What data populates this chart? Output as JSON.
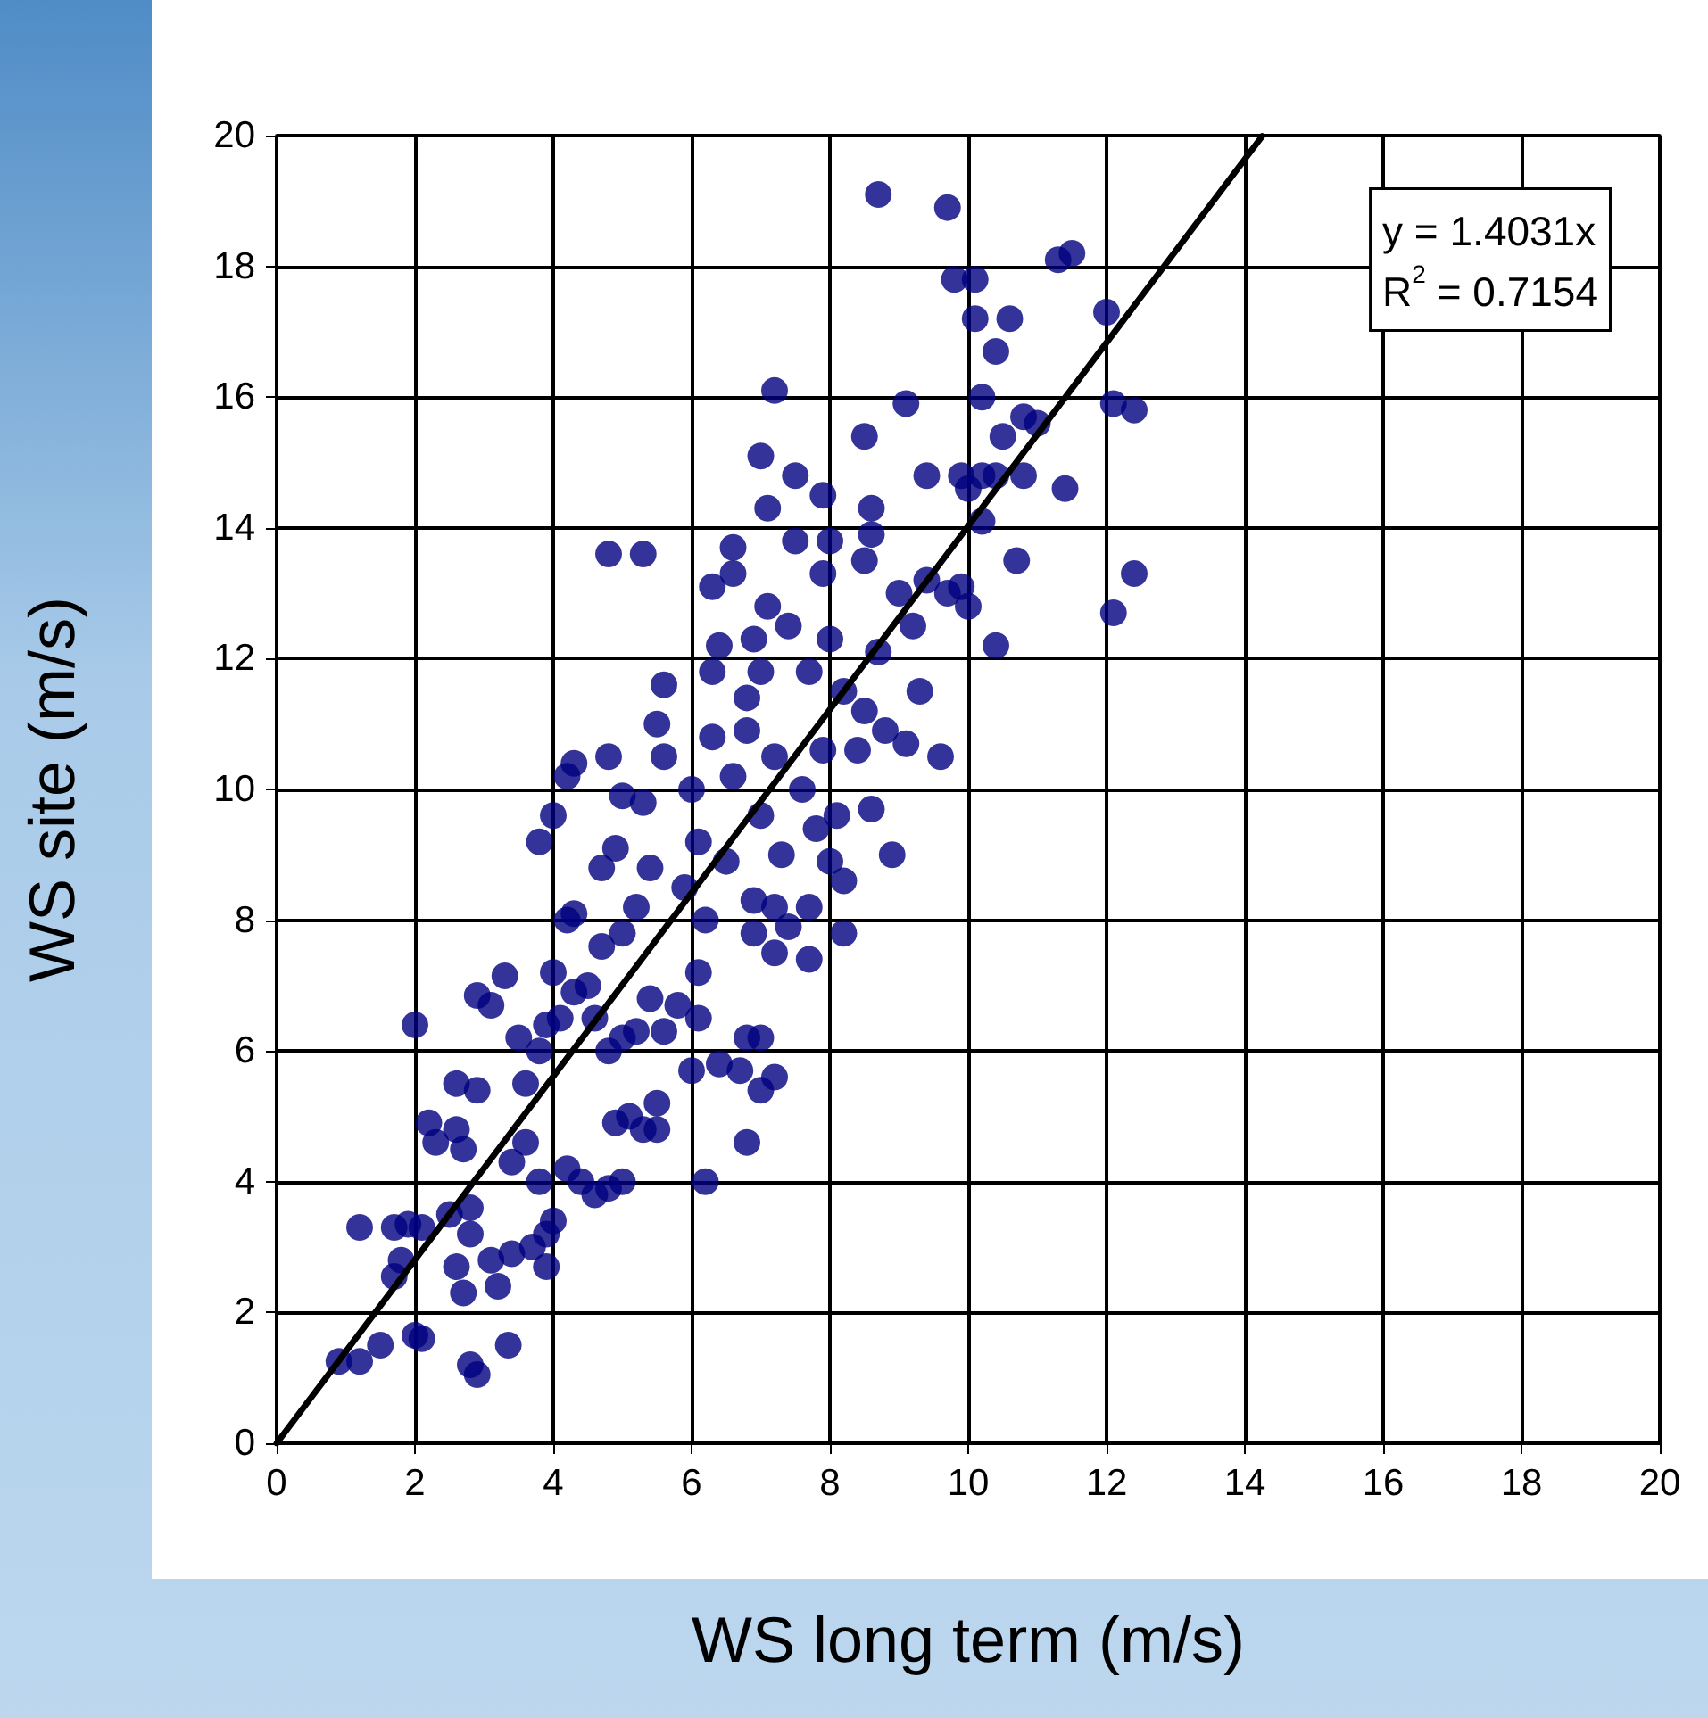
{
  "chart_data": {
    "type": "scatter",
    "xlabel": "WS long term (m/s)",
    "ylabel": "WS site (m/s)",
    "xlim": [
      0,
      20
    ],
    "ylim": [
      0,
      20
    ],
    "xticks": [
      0,
      2,
      4,
      6,
      8,
      10,
      12,
      14,
      16,
      18,
      20
    ],
    "yticks": [
      0,
      2,
      4,
      6,
      8,
      10,
      12,
      14,
      16,
      18,
      20
    ],
    "grid": true,
    "marker": "circle",
    "annotations": [
      "y = 1.4031x",
      "R$^{2}$ = 0.7154"
    ],
    "series": [
      {
        "color": "#000080",
        "x": [
          0.9,
          1.2,
          1.5,
          2.0,
          2.1,
          2.8,
          2.9,
          3.35,
          1.2,
          1.7,
          1.9,
          2.1,
          1.7,
          1.8,
          2.0,
          2.2,
          2.3,
          2.6,
          2.6,
          2.9,
          2.9,
          3.1,
          3.3,
          2.7,
          2.5,
          2.8,
          2.8,
          3.1,
          2.6,
          2.7,
          3.2,
          3.4,
          3.7,
          3.9,
          3.9,
          4.0,
          3.4,
          3.6,
          3.8,
          4.2,
          4.4,
          4.6,
          4.8,
          5.0,
          5.1,
          5.3,
          5.5,
          4.9,
          5.5,
          6.0,
          6.2,
          6.1,
          6.4,
          6.7,
          6.8,
          7.2,
          7.0,
          7.0,
          6.8,
          3.6,
          3.8,
          3.9,
          4.1,
          3.5,
          4.3,
          4.0,
          4.2,
          4.3,
          4.2,
          4.3,
          3.8,
          4.0,
          4.5,
          4.6,
          4.8,
          5.0,
          5.2,
          5.4,
          5.6,
          5.8,
          6.1,
          4.7,
          5.0,
          5.2,
          5.4,
          4.7,
          4.9,
          5.0,
          5.3,
          4.8,
          4.8,
          5.3,
          5.5,
          5.6,
          5.6,
          6.0,
          5.9,
          6.1,
          6.3,
          6.3,
          6.4,
          6.3,
          6.6,
          6.6,
          6.9,
          6.8,
          7.0,
          6.6,
          6.8,
          7.2,
          7.0,
          7.3,
          7.2,
          6.9,
          6.5,
          6.2,
          6.9,
          7.2,
          7.7,
          7.7,
          7.4,
          8.0,
          8.2,
          8.2,
          8.6,
          8.9,
          8.1,
          7.8,
          7.6,
          7.9,
          8.4,
          8.5,
          8.8,
          8.2,
          8.7,
          7.7,
          8.0,
          7.4,
          7.1,
          7.5,
          7.1,
          7.5,
          7.9,
          8.0,
          7.9,
          8.5,
          8.6,
          8.5,
          7.0,
          7.2,
          8.6,
          9.0,
          9.2,
          9.3,
          9.1,
          9.6,
          9.4,
          9.4,
          9.1,
          9.7,
          9.9,
          10.0,
          10.0,
          9.9,
          10.2,
          10.4,
          10.2,
          10.4,
          10.7,
          10.8,
          10.8,
          10.5,
          10.2,
          10.4,
          10.1,
          10.6,
          9.8,
          10.1,
          9.7,
          8.7,
          11.3,
          11.5,
          11.4,
          12.0,
          12.1,
          12.4,
          12.1,
          12.4,
          11.0
        ],
        "values": [
          1.25,
          1.25,
          1.5,
          1.65,
          1.6,
          1.2,
          1.05,
          1.5,
          3.3,
          3.3,
          3.35,
          3.3,
          2.55,
          2.8,
          6.4,
          4.9,
          4.6,
          4.8,
          5.5,
          5.4,
          6.85,
          6.7,
          7.15,
          4.5,
          3.5,
          3.2,
          3.6,
          2.8,
          2.7,
          2.3,
          2.4,
          2.9,
          3.0,
          2.7,
          3.2,
          3.4,
          4.3,
          4.6,
          4.0,
          4.2,
          4.0,
          3.8,
          3.9,
          4.0,
          5.0,
          4.8,
          4.8,
          4.9,
          5.2,
          5.7,
          4.0,
          6.5,
          5.8,
          5.7,
          4.6,
          5.6,
          5.4,
          6.2,
          6.2,
          5.5,
          6.0,
          6.4,
          6.5,
          6.2,
          6.9,
          7.2,
          8.0,
          8.1,
          10.2,
          10.4,
          9.2,
          9.6,
          7.0,
          6.5,
          6.0,
          6.2,
          6.3,
          6.8,
          6.3,
          6.7,
          7.2,
          7.6,
          7.8,
          8.2,
          8.8,
          8.8,
          9.1,
          9.9,
          9.8,
          10.5,
          13.6,
          13.6,
          11.0,
          11.6,
          10.5,
          10.0,
          8.5,
          9.2,
          10.8,
          11.8,
          12.2,
          13.1,
          13.3,
          13.7,
          12.3,
          11.4,
          11.8,
          10.2,
          10.9,
          10.5,
          9.6,
          9.0,
          8.2,
          8.3,
          8.9,
          8.0,
          7.8,
          7.5,
          8.2,
          7.4,
          7.9,
          8.9,
          7.8,
          8.6,
          9.7,
          9.0,
          9.6,
          9.4,
          10.0,
          10.6,
          10.6,
          11.2,
          10.9,
          11.5,
          12.1,
          11.8,
          12.3,
          12.5,
          12.8,
          13.8,
          14.3,
          14.8,
          14.5,
          13.8,
          13.3,
          13.5,
          14.3,
          15.4,
          15.1,
          16.1,
          13.9,
          13.0,
          12.5,
          11.5,
          10.7,
          10.5,
          13.2,
          14.8,
          15.9,
          13.0,
          13.1,
          12.8,
          14.6,
          14.8,
          14.8,
          14.8,
          14.1,
          12.2,
          13.5,
          14.8,
          15.7,
          15.4,
          16.0,
          16.7,
          17.2,
          17.2,
          17.8,
          17.8,
          18.9,
          19.1,
          18.1,
          18.2,
          14.6,
          17.3,
          15.9,
          15.8,
          12.7,
          13.3,
          15.6
        ]
      },
      {
        "type": "line",
        "color": "#000000",
        "marker": "none",
        "line_style": "solid",
        "x": [
          0,
          14.25
        ],
        "values": [
          0,
          19.99
        ]
      }
    ]
  }
}
